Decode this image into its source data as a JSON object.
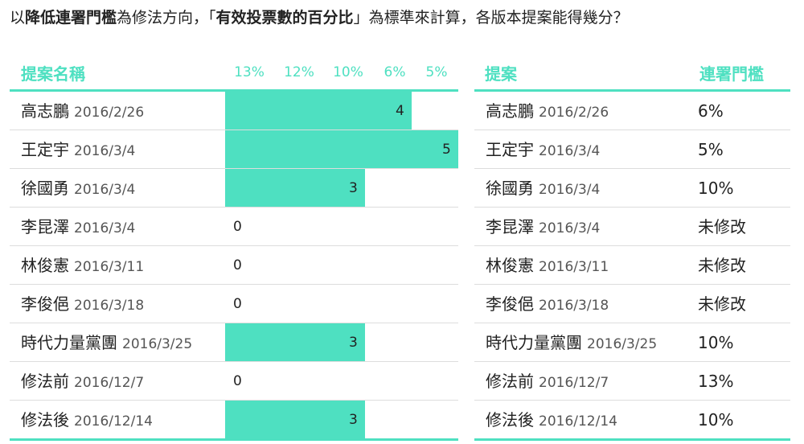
{
  "question": {
    "part1": "以",
    "bold1": "降低連署門檻",
    "part2": "為修法方向，「",
    "bold2": "有效投票數的百分比",
    "part3": "」為標準來計算，各版本提案能得幾分？"
  },
  "left_table": {
    "header_name": "提案名稱",
    "ticks": [
      "13%",
      "12%",
      "10%",
      "6%",
      "5%"
    ]
  },
  "right_table": {
    "header_name": "提案",
    "header_threshold": "連署門檻"
  },
  "rows": [
    {
      "name": "高志鵬",
      "date": "2016/2/26",
      "score": 4,
      "score_label": "4",
      "threshold": "6%"
    },
    {
      "name": "王定宇",
      "date": "2016/3/4",
      "score": 5,
      "score_label": "5",
      "threshold": "5%"
    },
    {
      "name": "徐國勇",
      "date": "2016/3/4",
      "score": 3,
      "score_label": "3",
      "threshold": "10%"
    },
    {
      "name": "李昆澤",
      "date": "2016/3/4",
      "score": 0,
      "score_label": "0",
      "threshold": "未修改"
    },
    {
      "name": "林俊憲",
      "date": "2016/3/11",
      "score": 0,
      "score_label": "0",
      "threshold": "未修改"
    },
    {
      "name": "李俊俋",
      "date": "2016/3/18",
      "score": 0,
      "score_label": "0",
      "threshold": "未修改"
    },
    {
      "name": "時代力量黨團",
      "date": "2016/3/25",
      "score": 3,
      "score_label": "3",
      "threshold": "10%"
    },
    {
      "name": "修法前",
      "date": "2016/12/7",
      "score": 0,
      "score_label": "0",
      "threshold": "13%"
    },
    {
      "name": "修法後",
      "date": "2016/12/14",
      "score": 3,
      "score_label": "3",
      "threshold": "10%"
    }
  ],
  "chart_data": {
    "type": "bar",
    "orientation": "horizontal",
    "categories": [
      "高志鵬 2016/2/26",
      "王定宇 2016/3/4",
      "徐國勇 2016/3/4",
      "李昆澤 2016/3/4",
      "林俊憲 2016/3/11",
      "李俊俋 2016/3/18",
      "時代力量黨團 2016/3/25",
      "修法前 2016/12/7",
      "修法後 2016/12/14"
    ],
    "values": [
      4,
      5,
      3,
      0,
      0,
      0,
      3,
      0,
      3
    ],
    "x_tick_labels": [
      "13%",
      "12%",
      "10%",
      "6%",
      "5%"
    ],
    "xlim": [
      0,
      5
    ],
    "bar_color": "#4ee0c1",
    "grid": false
  },
  "colors": {
    "accent": "#4ee0c1",
    "row_divider": "#dddddd",
    "text": "#222222",
    "date_text": "#555555"
  }
}
